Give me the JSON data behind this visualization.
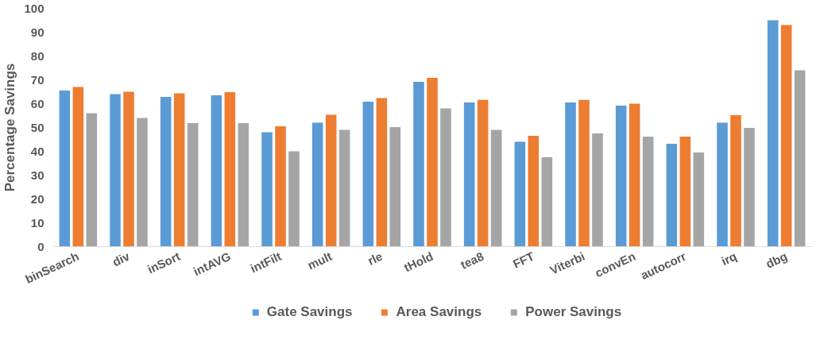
{
  "chart_data": {
    "type": "bar",
    "ylabel": "Percentage Savings",
    "categories": [
      "binSearch",
      "div",
      "inSort",
      "intAVG",
      "intFilt",
      "mult",
      "rle",
      "tHold",
      "tea8",
      "FFT",
      "Viterbi",
      "convEn",
      "autocorr",
      "irq",
      "dbg"
    ],
    "series": [
      {
        "name": "Gate Savings",
        "color": "#5b9bd5",
        "values": [
          65.5,
          64,
          62.8,
          63.5,
          48,
          52,
          60.8,
          69.2,
          60.5,
          44,
          60.5,
          59.2,
          43.2,
          52,
          95
        ]
      },
      {
        "name": "Area Savings",
        "color": "#ed7d31",
        "values": [
          67,
          65,
          64.3,
          64.8,
          50.5,
          55.3,
          62.3,
          70.8,
          61.6,
          46.5,
          61.6,
          60,
          46.2,
          55.2,
          93
        ]
      },
      {
        "name": "Power Savings",
        "color": "#a5a5a5",
        "values": [
          56,
          54,
          51.8,
          51.8,
          40,
          49,
          50.2,
          58,
          49,
          37.5,
          47.5,
          46.2,
          39.5,
          49.8,
          74
        ]
      }
    ],
    "ylim": [
      0,
      100
    ],
    "yticks": [
      0,
      10,
      20,
      30,
      40,
      50,
      60,
      70,
      80,
      90,
      100
    ],
    "grid": false,
    "legend": "bottom"
  }
}
